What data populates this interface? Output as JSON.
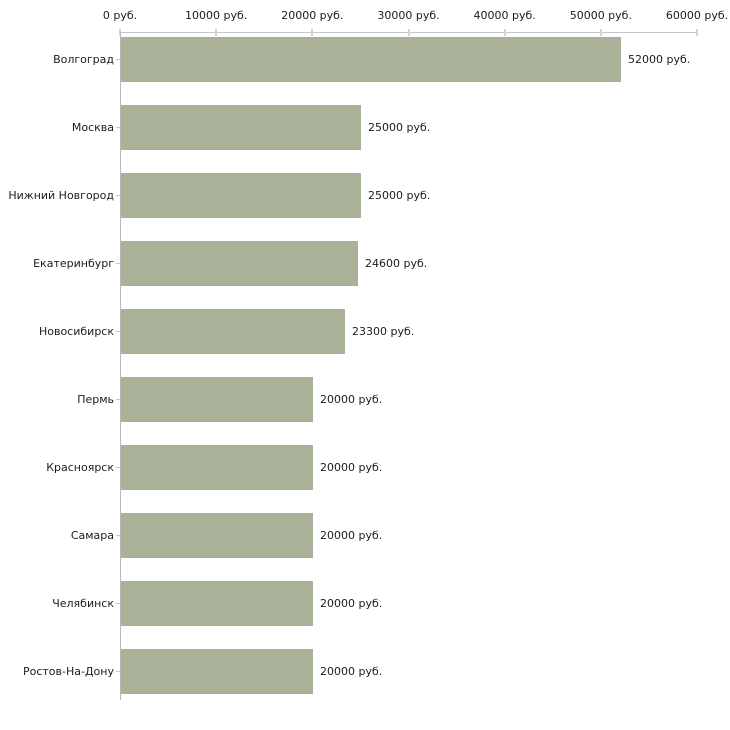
{
  "chart_data": {
    "type": "bar",
    "orientation": "horizontal",
    "title": "",
    "categories": [
      "Волгоград",
      "Москва",
      "Нижний Новгород",
      "Екатеринбург",
      "Новосибирск",
      "Пермь",
      "Красноярск",
      "Самара",
      "Челябинск",
      "Ростов-На-Дону"
    ],
    "values": [
      52000,
      25000,
      25000,
      24600,
      23300,
      20000,
      20000,
      20000,
      20000,
      20000
    ],
    "value_labels": [
      "52000 руб.",
      "25000 руб.",
      "25000 руб.",
      "24600 руб.",
      "23300 руб.",
      "20000 руб.",
      "20000 руб.",
      "20000 руб.",
      "20000 руб.",
      "20000 руб."
    ],
    "x_axis": {
      "position": "top",
      "min": 0,
      "max": 60000,
      "ticks": [
        0,
        10000,
        20000,
        30000,
        40000,
        50000,
        60000
      ],
      "tick_labels": [
        "0 руб.",
        "10000 руб.",
        "20000 руб.",
        "30000 руб.",
        "40000 руб.",
        "50000 руб.",
        "60000 руб."
      ]
    },
    "grid": false,
    "legend": false,
    "colors": {
      "bar_fill": "#aab199",
      "x_axis_line": "#c6c6c6",
      "y_axis_line": "#b8b8b8",
      "x_tick": "#d4d7bd",
      "category_tick": "#c9ccb9",
      "text": "#1c1c1c",
      "background": "#ffffff"
    }
  }
}
